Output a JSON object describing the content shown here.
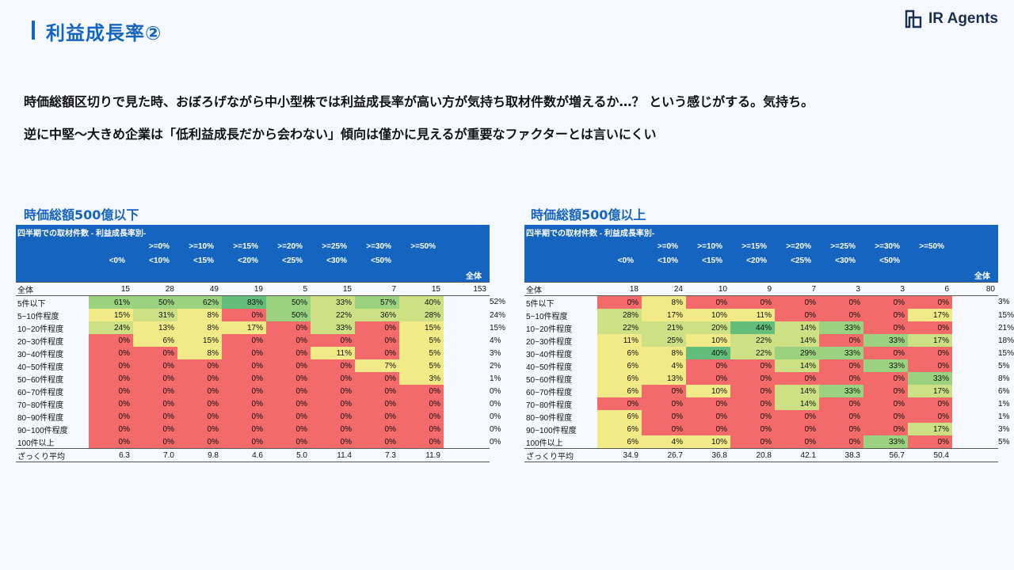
{
  "header": {
    "title": "利益成長率②",
    "logo_text": "IR Agents"
  },
  "body": {
    "line1": "時価総額区切りで見た時、おぼろげながら中小型株では利益成長率が高い方が気持ち取材件数が増えるか…？ という感じがする。気持ち。",
    "line2": "逆に中堅～大きめ企業は「低利益成長だから会わない」傾向は僅かに見えるが重要なファクターとは言いにくい"
  },
  "tables": [
    {
      "title": "時価総額500億以下",
      "caption": "四半期での取材件数 - 利益成長率別-",
      "headers_row1": [
        "",
        ">=0%",
        ">=10%",
        ">=15%",
        ">=20%",
        ">=25%",
        ">=30%",
        ">=50%",
        ""
      ],
      "headers_row2": [
        "<0%",
        "<10%",
        "<15%",
        "<20%",
        "<25%",
        "<30%",
        "<50%",
        "",
        ""
      ],
      "total_header": "全体",
      "total_row": {
        "label": "全体",
        "values": [
          "15",
          "28",
          "49",
          "19",
          "5",
          "15",
          "7",
          "15",
          "153"
        ]
      },
      "rows": [
        {
          "label": "5件以下",
          "values": [
            "61%",
            "50%",
            "62%",
            "83%",
            "50%",
            "33%",
            "57%",
            "40%"
          ],
          "classes": [
            "g2",
            "g2",
            "g2",
            "g1",
            "g2",
            "g3",
            "g2",
            "g3"
          ],
          "total": "52%"
        },
        {
          "label": "5~10件程度",
          "values": [
            "15%",
            "31%",
            "8%",
            "0%",
            "50%",
            "22%",
            "36%",
            "28%"
          ],
          "classes": [
            "y",
            "g3",
            "y",
            "r",
            "g2",
            "g3",
            "g3",
            "g3"
          ],
          "total": "24%"
        },
        {
          "label": "10~20件程度",
          "values": [
            "24%",
            "13%",
            "8%",
            "17%",
            "0%",
            "33%",
            "0%",
            "15%"
          ],
          "classes": [
            "g3",
            "y",
            "y",
            "y",
            "r",
            "g3",
            "r",
            "y"
          ],
          "total": "15%"
        },
        {
          "label": "20~30件程度",
          "values": [
            "0%",
            "6%",
            "15%",
            "0%",
            "0%",
            "0%",
            "0%",
            "5%"
          ],
          "classes": [
            "r",
            "y",
            "y",
            "r",
            "r",
            "r",
            "r",
            "y"
          ],
          "total": "4%"
        },
        {
          "label": "30~40件程度",
          "values": [
            "0%",
            "0%",
            "8%",
            "0%",
            "0%",
            "11%",
            "0%",
            "5%"
          ],
          "classes": [
            "r",
            "r",
            "y",
            "r",
            "r",
            "y",
            "r",
            "y"
          ],
          "total": "3%"
        },
        {
          "label": "40~50件程度",
          "values": [
            "0%",
            "0%",
            "0%",
            "0%",
            "0%",
            "0%",
            "7%",
            "5%"
          ],
          "classes": [
            "r",
            "r",
            "r",
            "r",
            "r",
            "r",
            "y",
            "y"
          ],
          "total": "2%"
        },
        {
          "label": "50~60件程度",
          "values": [
            "0%",
            "0%",
            "0%",
            "0%",
            "0%",
            "0%",
            "0%",
            "3%"
          ],
          "classes": [
            "r",
            "r",
            "r",
            "r",
            "r",
            "r",
            "r",
            "y"
          ],
          "total": "1%"
        },
        {
          "label": "60~70件程度",
          "values": [
            "0%",
            "0%",
            "0%",
            "0%",
            "0%",
            "0%",
            "0%",
            "0%"
          ],
          "classes": [
            "r",
            "r",
            "r",
            "r",
            "r",
            "r",
            "r",
            "r"
          ],
          "total": "0%"
        },
        {
          "label": "70~80件程度",
          "values": [
            "0%",
            "0%",
            "0%",
            "0%",
            "0%",
            "0%",
            "0%",
            "0%"
          ],
          "classes": [
            "r",
            "r",
            "r",
            "r",
            "r",
            "r",
            "r",
            "r"
          ],
          "total": "0%"
        },
        {
          "label": "80~90件程度",
          "values": [
            "0%",
            "0%",
            "0%",
            "0%",
            "0%",
            "0%",
            "0%",
            "0%"
          ],
          "classes": [
            "r",
            "r",
            "r",
            "r",
            "r",
            "r",
            "r",
            "r"
          ],
          "total": "0%"
        },
        {
          "label": "90~100件程度",
          "values": [
            "0%",
            "0%",
            "0%",
            "0%",
            "0%",
            "0%",
            "0%",
            "0%"
          ],
          "classes": [
            "r",
            "r",
            "r",
            "r",
            "r",
            "r",
            "r",
            "r"
          ],
          "total": "0%"
        },
        {
          "label": "100件以上",
          "values": [
            "0%",
            "0%",
            "0%",
            "0%",
            "0%",
            "0%",
            "0%",
            "0%"
          ],
          "classes": [
            "r",
            "r",
            "r",
            "r",
            "r",
            "r",
            "r",
            "r"
          ],
          "total": "0%"
        }
      ],
      "avg_row": {
        "label": "ざっくり平均",
        "values": [
          "6.3",
          "7.0",
          "9.8",
          "4.6",
          "5.0",
          "11.4",
          "7.3",
          "11.9",
          ""
        ]
      }
    },
    {
      "title": "時価総額500億以上",
      "caption": "四半期での取材件数 - 利益成長率別-",
      "headers_row1": [
        "",
        ">=0%",
        ">=10%",
        ">=15%",
        ">=20%",
        ">=25%",
        ">=30%",
        ">=50%",
        ""
      ],
      "headers_row2": [
        "<0%",
        "<10%",
        "<15%",
        "<20%",
        "<25%",
        "<30%",
        "<50%",
        "",
        ""
      ],
      "total_header": "全体",
      "total_row": {
        "label": "全体",
        "values": [
          "18",
          "24",
          "10",
          "9",
          "7",
          "3",
          "3",
          "6",
          "80"
        ]
      },
      "rows": [
        {
          "label": "5件以下",
          "values": [
            "0%",
            "8%",
            "0%",
            "0%",
            "0%",
            "0%",
            "0%",
            "0%"
          ],
          "classes": [
            "r",
            "y",
            "r",
            "r",
            "r",
            "r",
            "r",
            "r"
          ],
          "total": "3%"
        },
        {
          "label": "5~10件程度",
          "values": [
            "28%",
            "17%",
            "10%",
            "11%",
            "0%",
            "0%",
            "0%",
            "17%"
          ],
          "classes": [
            "g3",
            "y",
            "y",
            "y",
            "r",
            "r",
            "r",
            "y"
          ],
          "total": "15%"
        },
        {
          "label": "10~20件程度",
          "values": [
            "22%",
            "21%",
            "20%",
            "44%",
            "14%",
            "33%",
            "0%",
            "0%"
          ],
          "classes": [
            "g3",
            "g3",
            "g3",
            "g1",
            "g3",
            "g2",
            "r",
            "r"
          ],
          "total": "21%"
        },
        {
          "label": "20~30件程度",
          "values": [
            "11%",
            "25%",
            "10%",
            "22%",
            "14%",
            "0%",
            "33%",
            "17%"
          ],
          "classes": [
            "y",
            "g3",
            "y",
            "g3",
            "g3",
            "r",
            "g2",
            "g3"
          ],
          "total": "18%"
        },
        {
          "label": "30~40件程度",
          "values": [
            "6%",
            "8%",
            "40%",
            "22%",
            "29%",
            "33%",
            "0%",
            "0%"
          ],
          "classes": [
            "y",
            "y",
            "g1",
            "g3",
            "g2",
            "g2",
            "r",
            "r"
          ],
          "total": "15%"
        },
        {
          "label": "40~50件程度",
          "values": [
            "6%",
            "4%",
            "0%",
            "0%",
            "14%",
            "0%",
            "33%",
            "0%"
          ],
          "classes": [
            "y",
            "y",
            "r",
            "r",
            "g3",
            "r",
            "g2",
            "r"
          ],
          "total": "5%"
        },
        {
          "label": "50~60件程度",
          "values": [
            "6%",
            "13%",
            "0%",
            "0%",
            "0%",
            "0%",
            "0%",
            "33%"
          ],
          "classes": [
            "y",
            "y",
            "r",
            "r",
            "r",
            "r",
            "r",
            "g2"
          ],
          "total": "8%"
        },
        {
          "label": "60~70件程度",
          "values": [
            "6%",
            "0%",
            "10%",
            "0%",
            "14%",
            "33%",
            "0%",
            "17%"
          ],
          "classes": [
            "y",
            "r",
            "y",
            "r",
            "g3",
            "g2",
            "r",
            "g3"
          ],
          "total": "6%"
        },
        {
          "label": "70~80件程度",
          "values": [
            "0%",
            "0%",
            "0%",
            "0%",
            "14%",
            "0%",
            "0%",
            "0%"
          ],
          "classes": [
            "r",
            "r",
            "r",
            "r",
            "g3",
            "r",
            "r",
            "r"
          ],
          "total": "1%"
        },
        {
          "label": "80~90件程度",
          "values": [
            "6%",
            "0%",
            "0%",
            "0%",
            "0%",
            "0%",
            "0%",
            "0%"
          ],
          "classes": [
            "y",
            "r",
            "r",
            "r",
            "r",
            "r",
            "r",
            "r"
          ],
          "total": "1%"
        },
        {
          "label": "90~100件程度",
          "values": [
            "6%",
            "0%",
            "0%",
            "0%",
            "0%",
            "0%",
            "0%",
            "17%"
          ],
          "classes": [
            "y",
            "r",
            "r",
            "r",
            "r",
            "r",
            "r",
            "g3"
          ],
          "total": "3%"
        },
        {
          "label": "100件以上",
          "values": [
            "6%",
            "4%",
            "10%",
            "0%",
            "0%",
            "0%",
            "33%",
            "0%"
          ],
          "classes": [
            "y",
            "y",
            "y",
            "r",
            "r",
            "r",
            "g2",
            "r"
          ],
          "total": "5%"
        }
      ],
      "avg_row": {
        "label": "ざっくり平均",
        "values": [
          "34.9",
          "26.7",
          "36.8",
          "20.8",
          "42.1",
          "38.3",
          "56.7",
          "50.4",
          ""
        ]
      }
    }
  ],
  "colors": {
    "accent": "#1565c0",
    "green_strong": "#63be7b",
    "green": "#9ad27f",
    "green_light": "#cde084",
    "yellow": "#f2e987",
    "red": "#f36a6a"
  }
}
